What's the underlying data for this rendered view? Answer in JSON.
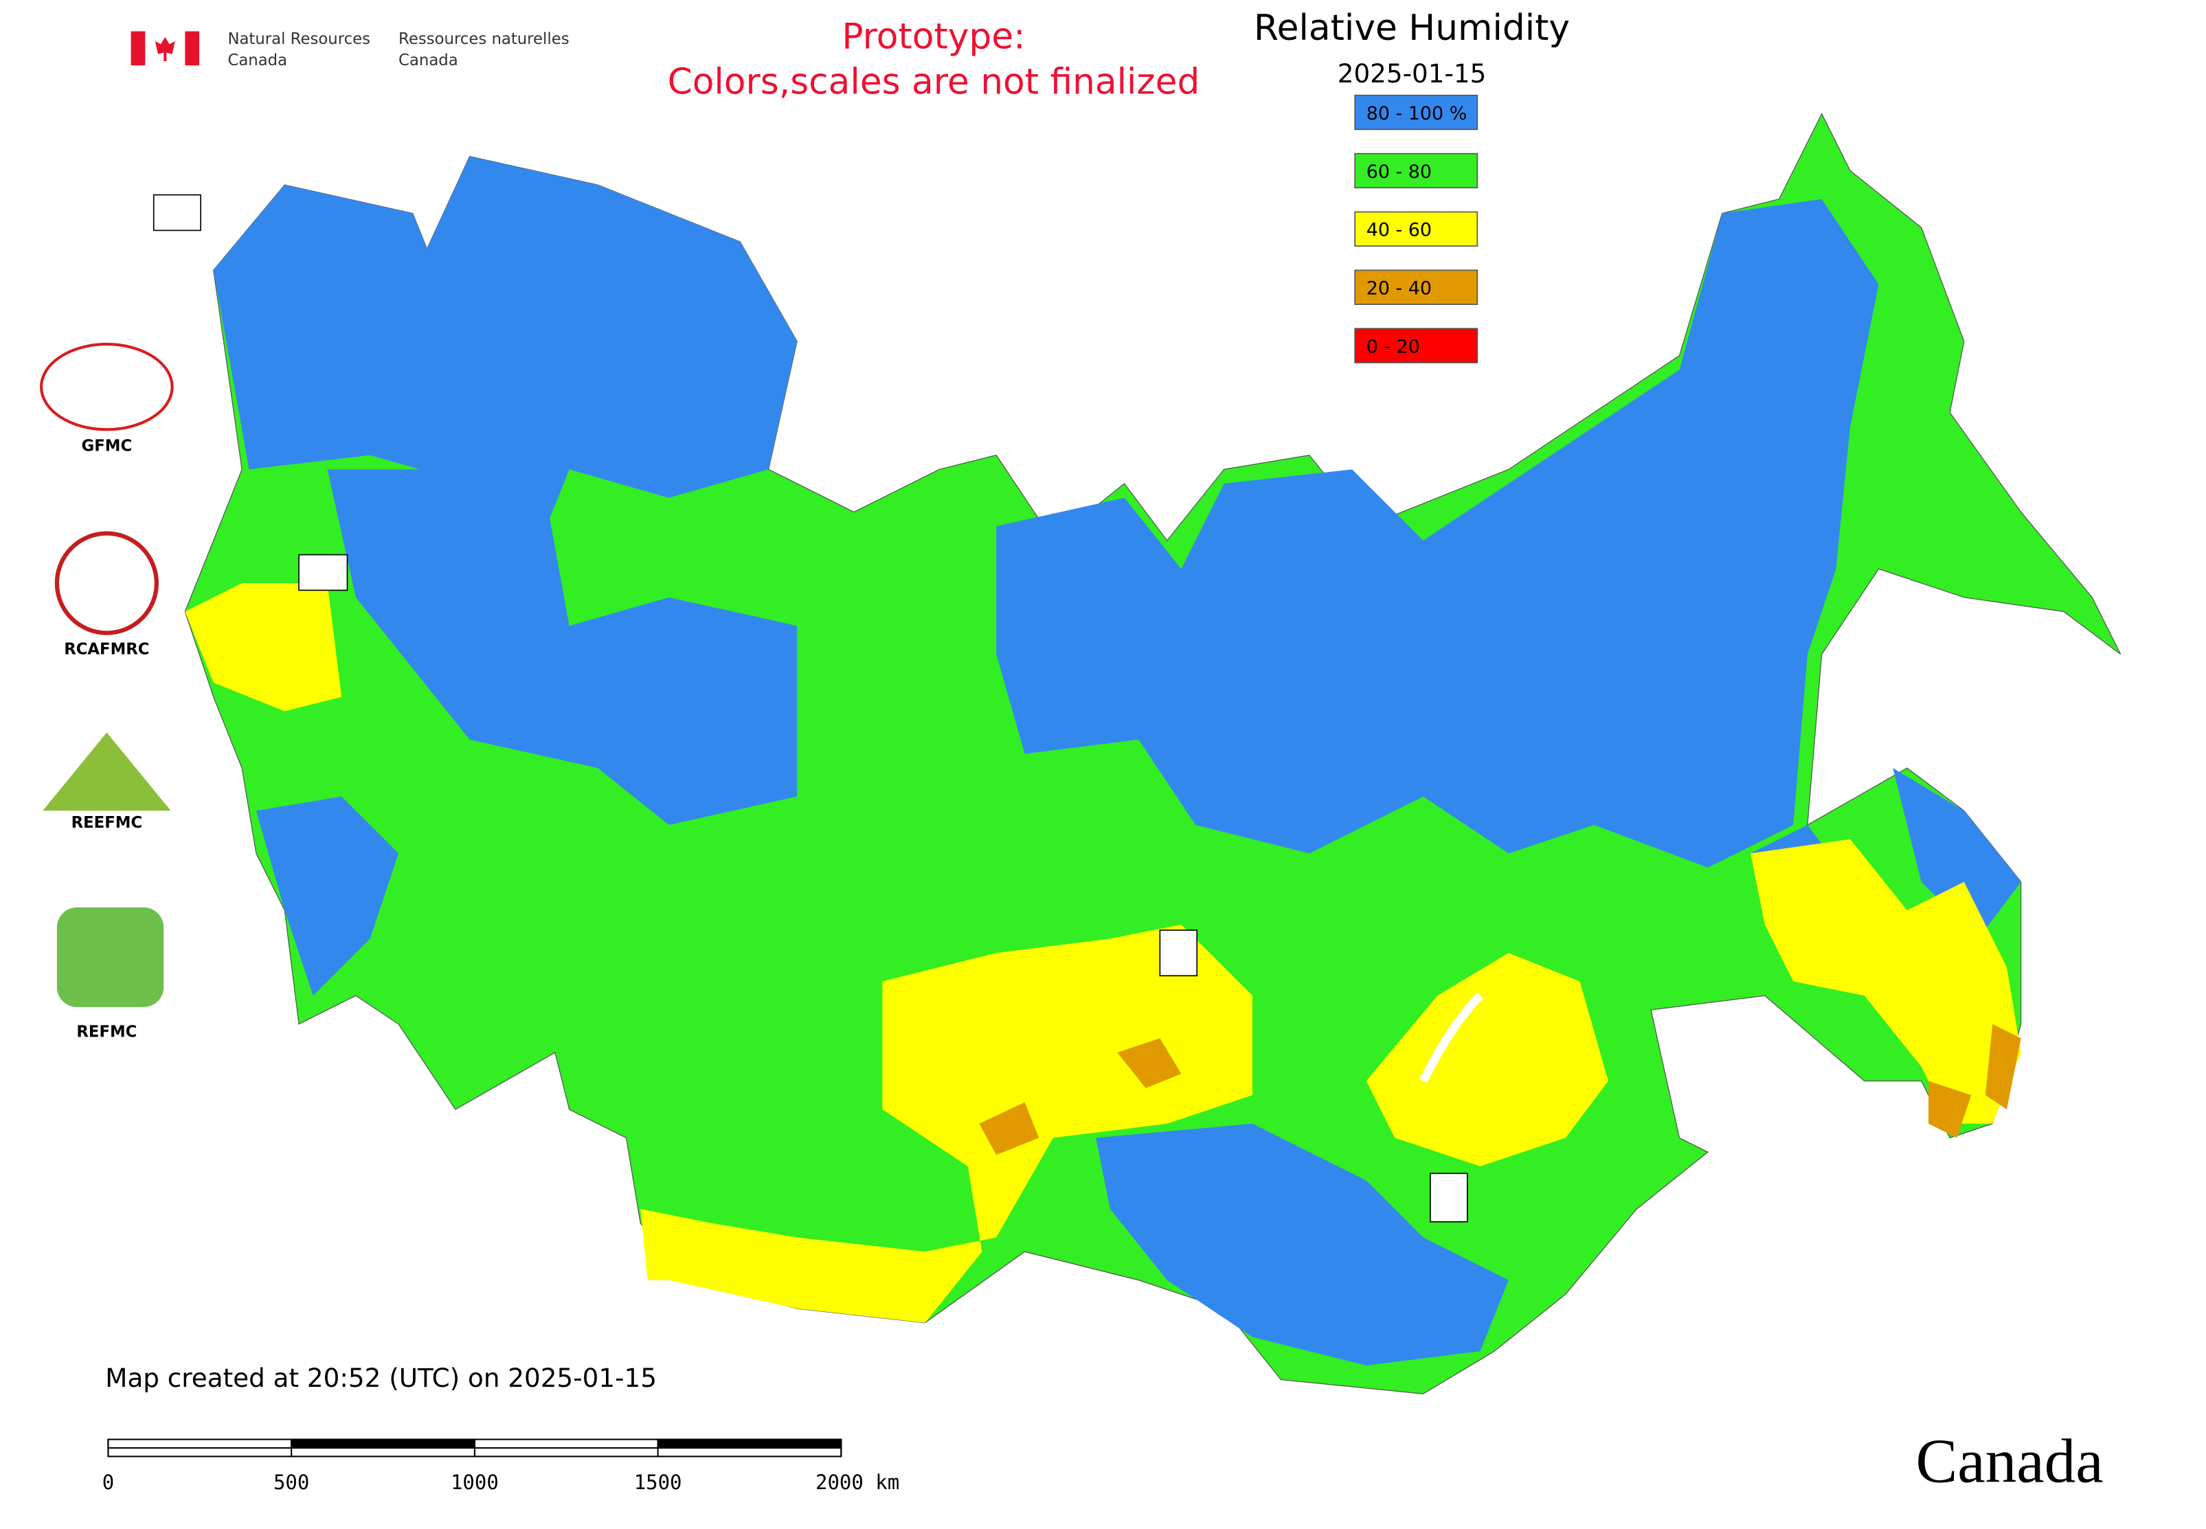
{
  "header": {
    "agency_en": [
      "Natural Resources",
      "Canada"
    ],
    "agency_fr": [
      "Ressources naturelles",
      "Canada"
    ]
  },
  "notice": [
    "Prototype:",
    "Colors,scales are not finalized"
  ],
  "title": "Relative Humidity",
  "date": "2025-01-15",
  "legend": [
    {
      "label": "80 - 100 %",
      "color": "#3388ee"
    },
    {
      "label": "60 - 80",
      "color": "#33ee22"
    },
    {
      "label": "40 - 60",
      "color": "#ffff00"
    },
    {
      "label": "20 - 40",
      "color": "#e09a00"
    },
    {
      "label": "0 - 20",
      "color": "#ff0000"
    }
  ],
  "logos": [
    "GFMC",
    "RCAFMRC",
    "REEFMC",
    "REFMC"
  ],
  "footer": "Map created at 20:52 (UTC) on 2025-01-15",
  "scale_bar": {
    "ticks": [
      0,
      500,
      1000,
      1500,
      {
        "value": 2000,
        "label": "2000 km"
      }
    ]
  },
  "wordmark": "Canada"
}
